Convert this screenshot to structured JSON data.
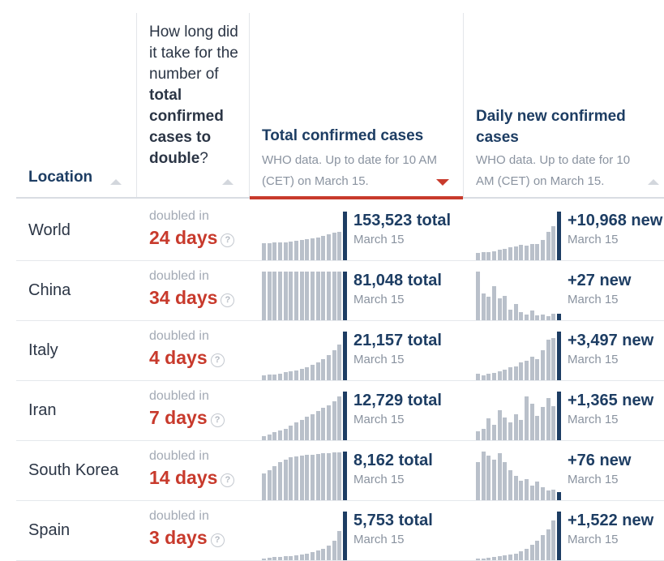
{
  "header": {
    "location": "Location",
    "doubling_pre": "How long did it take for the number of",
    "doubling_bold": "total confirmed cases to double",
    "doubling_post": "?",
    "total_title": "Total confirmed cases",
    "total_sub": "WHO data. Up to date for 10 AM (CET) on March 15.",
    "new_title": "Daily new confirmed cases",
    "new_sub": "WHO data. Up to date for 10 AM (CET) on March 15."
  },
  "colors": {
    "accent": "#c83a2c",
    "navy": "#1d3d63",
    "bar": "#b9c0ca",
    "muted": "#8a93a0"
  },
  "rows": [
    {
      "location": "World",
      "doubled_label": "doubled in",
      "doubled_value": "24 days",
      "help": "?",
      "total_text": "153,523 total",
      "total_date": "March 15",
      "new_text": "+10,968 new",
      "new_date": "March 15",
      "total_series": [
        35,
        35,
        36,
        36,
        37,
        38,
        40,
        42,
        43,
        45,
        47,
        50,
        53,
        56,
        59,
        100
      ],
      "new_series": [
        15,
        17,
        17,
        19,
        21,
        23,
        26,
        28,
        31,
        30,
        33,
        34,
        42,
        58,
        70,
        100
      ]
    },
    {
      "location": "China",
      "doubled_label": "doubled in",
      "doubled_value": "34 days",
      "help": "?",
      "total_text": "81,048 total",
      "total_date": "March 15",
      "new_text": "+27 new",
      "new_date": "March 15",
      "total_series": [
        100,
        100,
        100,
        100,
        100,
        100,
        100,
        100,
        100,
        100,
        100,
        100,
        100,
        100,
        100,
        100
      ],
      "new_series": [
        100,
        55,
        48,
        70,
        45,
        50,
        22,
        34,
        16,
        12,
        20,
        10,
        12,
        8,
        14,
        14
      ]
    },
    {
      "location": "Italy",
      "doubled_label": "doubled in",
      "doubled_value": "4 days",
      "help": "?",
      "total_text": "21,157 total",
      "total_date": "March 15",
      "new_text": "+3,497 new",
      "new_date": "March 15",
      "total_series": [
        10,
        11,
        12,
        14,
        16,
        18,
        20,
        23,
        27,
        31,
        37,
        43,
        52,
        62,
        74,
        100
      ],
      "new_series": [
        14,
        10,
        13,
        15,
        18,
        22,
        26,
        28,
        36,
        40,
        48,
        44,
        62,
        84,
        86,
        100
      ]
    },
    {
      "location": "Iran",
      "doubled_label": "doubled in",
      "doubled_value": "7 days",
      "help": "?",
      "total_text": "12,729 total",
      "total_date": "March 15",
      "new_text": "+1,365 new",
      "new_date": "March 15",
      "total_series": [
        8,
        12,
        16,
        20,
        24,
        30,
        36,
        42,
        48,
        54,
        60,
        66,
        72,
        80,
        90,
        100
      ],
      "new_series": [
        18,
        24,
        45,
        32,
        62,
        46,
        36,
        54,
        42,
        90,
        75,
        50,
        68,
        86,
        70,
        100
      ]
    },
    {
      "location": "South Korea",
      "doubled_label": "doubled in",
      "doubled_value": "14 days",
      "help": "?",
      "total_text": "8,162 total",
      "total_date": "March 15",
      "new_text": "+76 new",
      "new_date": "March 15",
      "total_series": [
        55,
        62,
        70,
        78,
        84,
        88,
        90,
        92,
        93,
        94,
        95,
        96,
        97,
        98,
        99,
        100
      ],
      "new_series": [
        78,
        100,
        92,
        84,
        96,
        78,
        62,
        50,
        40,
        44,
        30,
        38,
        26,
        20,
        22,
        16
      ]
    },
    {
      "location": "Spain",
      "doubled_label": "doubled in",
      "doubled_value": "3 days",
      "help": "?",
      "total_text": "5,753 total",
      "total_date": "March 15",
      "new_text": "+1,522 new",
      "new_date": "March 15",
      "total_series": [
        4,
        5,
        6,
        7,
        8,
        9,
        10,
        12,
        14,
        16,
        20,
        24,
        30,
        40,
        60,
        100
      ],
      "new_series": [
        3,
        4,
        5,
        6,
        8,
        10,
        12,
        14,
        18,
        24,
        32,
        40,
        52,
        64,
        82,
        100
      ]
    }
  ]
}
